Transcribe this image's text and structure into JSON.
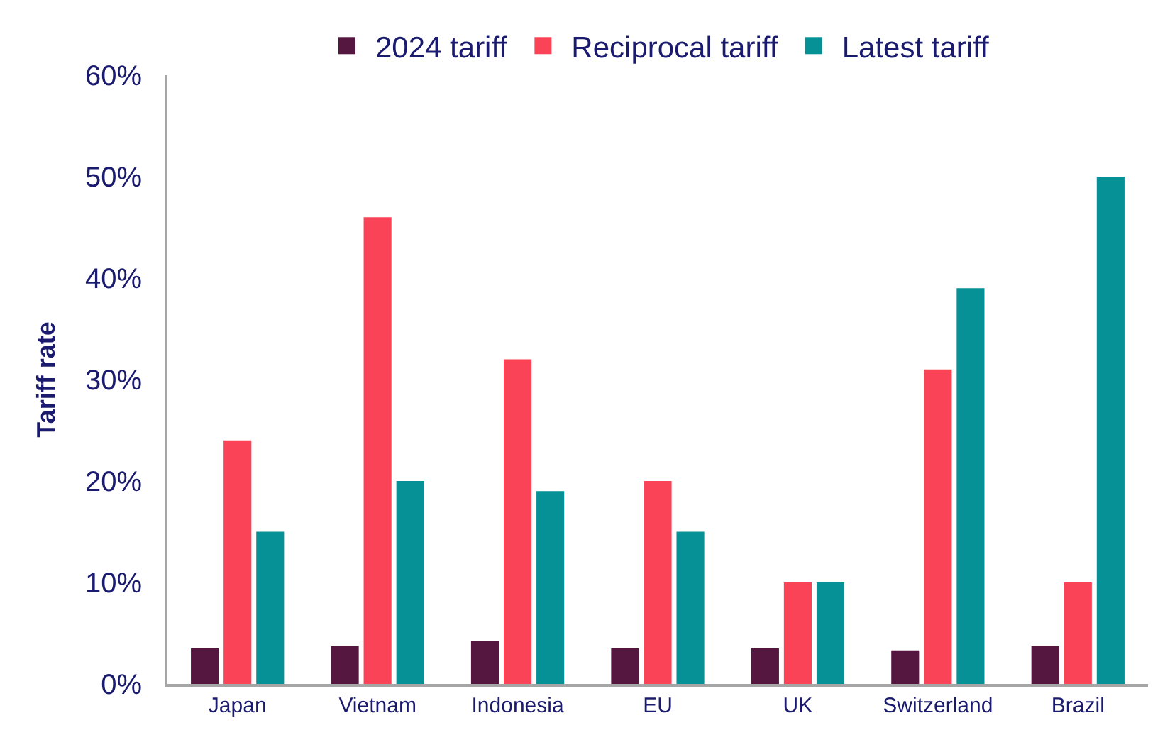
{
  "chart_data": {
    "type": "bar",
    "ylabel": "Tariff rate",
    "categories": [
      "Japan",
      "Vietnam",
      "Indonesia",
      "EU",
      "UK",
      "Switzerland",
      "Brazil"
    ],
    "series": [
      {
        "name": "2024 tariff",
        "color": "#55163f",
        "values": [
          3.5,
          3.7,
          4.2,
          3.5,
          3.5,
          3.3,
          3.7
        ]
      },
      {
        "name": "Reciprocal tariff",
        "color": "#fb4357",
        "values": [
          24,
          46,
          32,
          20,
          10,
          31,
          10
        ]
      },
      {
        "name": "Latest tariff",
        "color": "#069196",
        "values": [
          15,
          20,
          19,
          15,
          10,
          39,
          50
        ]
      }
    ],
    "ylim": [
      0,
      60
    ],
    "yticks": [
      {
        "value": 0,
        "label": "0%"
      },
      {
        "value": 10,
        "label": "10%"
      },
      {
        "value": 20,
        "label": "20%"
      },
      {
        "value": 30,
        "label": "30%"
      },
      {
        "value": 40,
        "label": "40%"
      },
      {
        "value": 50,
        "label": "50%"
      },
      {
        "value": 60,
        "label": "60%"
      }
    ],
    "legend": "top"
  }
}
